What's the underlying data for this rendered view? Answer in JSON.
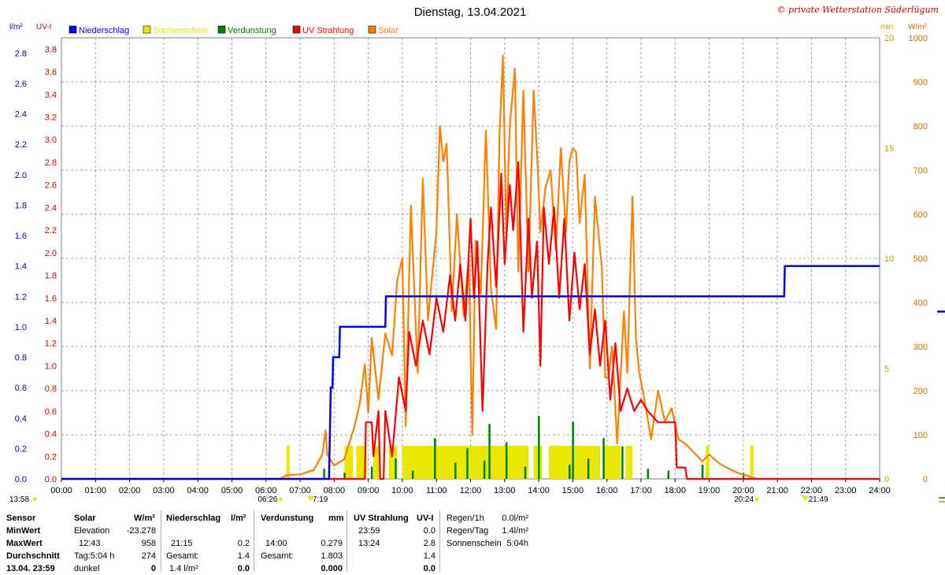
{
  "chart_data": {
    "type": "line",
    "title": "Dienstag, 13.04.2021",
    "copyright": "© private Wetterstation Süderlügum",
    "left_axis_units": [
      "l/m²",
      "UV-I"
    ],
    "right_axis_units": [
      "min",
      "W/m²"
    ],
    "legend": [
      {
        "name": "Niederschlag",
        "color": "#0000ff"
      },
      {
        "name": "Sonnenschein",
        "color": "#e8e800"
      },
      {
        "name": "Verdunstung",
        "color": "#008000"
      },
      {
        "name": "UV Strahlung",
        "color": "#ff0000"
      },
      {
        "name": "Solar",
        "color": "#ff8000"
      }
    ],
    "x_ticks": [
      "00:00",
      "01:00",
      "02:00",
      "03:00",
      "04:00",
      "05:00",
      "06:00",
      "07:00",
      "08:00",
      "09:00",
      "10:00",
      "11:00",
      "12:00",
      "13:00",
      "14:00",
      "15:00",
      "16:00",
      "17:00",
      "18:00",
      "19:00",
      "20:00",
      "21:00",
      "22:00",
      "23:00",
      "24:00"
    ],
    "y_ticks_rain": [
      "0.0",
      "0.2",
      "0.4",
      "0.6",
      "0.8",
      "1.0",
      "1.2",
      "1.4",
      "1.6",
      "1.8",
      "2.0",
      "2.2",
      "2.4",
      "2.6",
      "2.8"
    ],
    "y_ticks_uv": [
      "0.0",
      "0.2",
      "0.4",
      "0.6",
      "0.8",
      "1.0",
      "1.2",
      "1.4",
      "1.6",
      "1.8",
      "2.0",
      "2.2",
      "2.4",
      "2.6",
      "2.8",
      "3.0",
      "3.2",
      "3.4",
      "3.6",
      "3.8"
    ],
    "y_ticks_min": [
      "0",
      "5",
      "10",
      "15",
      "20"
    ],
    "y_ticks_solar": [
      "0",
      "100",
      "200",
      "300",
      "400",
      "500",
      "600",
      "700",
      "800",
      "900",
      "1000"
    ],
    "ranges": {
      "rain": [
        0,
        2.9
      ],
      "uv": [
        0,
        3.9
      ],
      "sun_min": [
        0,
        20
      ],
      "solar": [
        0,
        1000
      ],
      "hours": [
        0,
        24
      ]
    },
    "grid": true,
    "sun_events": {
      "dawn": {
        "time": 6.43,
        "label": "06:26"
      },
      "sunrise": {
        "time": 7.32,
        "label": "7:19"
      },
      "dusk": {
        "time": 20.4,
        "label": "20:24"
      },
      "sunset": {
        "time": 21.82,
        "label": "21:49"
      },
      "moon_label": "13:58"
    },
    "rain_series": [
      [
        0,
        0
      ],
      [
        7.85,
        0
      ],
      [
        7.9,
        0.6
      ],
      [
        7.95,
        0.6
      ],
      [
        7.97,
        0.8
      ],
      [
        8.15,
        0.8
      ],
      [
        8.17,
        1.0
      ],
      [
        9.5,
        1.0
      ],
      [
        9.52,
        1.2
      ],
      [
        21.2,
        1.2
      ],
      [
        21.22,
        1.4
      ],
      [
        24,
        1.4
      ]
    ],
    "rain_right_marker": 1.1,
    "solar_series": [
      [
        6.4,
        0
      ],
      [
        6.6,
        8
      ],
      [
        7.0,
        10
      ],
      [
        7.4,
        20
      ],
      [
        7.65,
        55
      ],
      [
        7.75,
        110
      ],
      [
        7.8,
        55
      ],
      [
        8.0,
        30
      ],
      [
        8.3,
        45
      ],
      [
        8.6,
        120
      ],
      [
        8.75,
        170
      ],
      [
        8.9,
        260
      ],
      [
        9.0,
        150
      ],
      [
        9.1,
        320
      ],
      [
        9.3,
        180
      ],
      [
        9.5,
        330
      ],
      [
        9.7,
        280
      ],
      [
        9.85,
        450
      ],
      [
        10.0,
        500
      ],
      [
        10.1,
        120
      ],
      [
        10.25,
        620
      ],
      [
        10.45,
        240
      ],
      [
        10.6,
        680
      ],
      [
        10.75,
        360
      ],
      [
        10.9,
        480
      ],
      [
        11.0,
        560
      ],
      [
        11.1,
        800
      ],
      [
        11.2,
        720
      ],
      [
        11.3,
        760
      ],
      [
        11.45,
        380
      ],
      [
        11.6,
        600
      ],
      [
        11.8,
        370
      ],
      [
        11.95,
        500
      ],
      [
        12.05,
        100
      ],
      [
        12.15,
        540
      ],
      [
        12.3,
        420
      ],
      [
        12.45,
        790
      ],
      [
        12.6,
        430
      ],
      [
        12.75,
        340
      ],
      [
        12.85,
        780
      ],
      [
        12.95,
        960
      ],
      [
        13.05,
        550
      ],
      [
        13.15,
        800
      ],
      [
        13.3,
        930
      ],
      [
        13.4,
        470
      ],
      [
        13.55,
        880
      ],
      [
        13.7,
        470
      ],
      [
        13.85,
        880
      ],
      [
        13.95,
        740
      ],
      [
        14.05,
        560
      ],
      [
        14.2,
        660
      ],
      [
        14.35,
        700
      ],
      [
        14.5,
        520
      ],
      [
        14.65,
        750
      ],
      [
        14.8,
        560
      ],
      [
        14.9,
        720
      ],
      [
        15.0,
        750
      ],
      [
        15.1,
        740
      ],
      [
        15.2,
        580
      ],
      [
        15.35,
        690
      ],
      [
        15.5,
        250
      ],
      [
        15.65,
        640
      ],
      [
        15.75,
        560
      ],
      [
        15.85,
        480
      ],
      [
        15.95,
        230
      ],
      [
        16.05,
        230
      ],
      [
        16.15,
        300
      ],
      [
        16.3,
        80
      ],
      [
        16.5,
        380
      ],
      [
        16.6,
        240
      ],
      [
        16.75,
        640
      ],
      [
        16.85,
        320
      ],
      [
        16.95,
        240
      ],
      [
        17.1,
        180
      ],
      [
        17.3,
        90
      ],
      [
        17.5,
        200
      ],
      [
        17.7,
        130
      ],
      [
        17.9,
        160
      ],
      [
        18.1,
        90
      ],
      [
        18.3,
        80
      ],
      [
        18.55,
        60
      ],
      [
        18.8,
        40
      ],
      [
        19.0,
        55
      ],
      [
        19.3,
        35
      ],
      [
        19.6,
        22
      ],
      [
        19.9,
        12
      ],
      [
        20.1,
        8
      ],
      [
        20.3,
        2
      ],
      [
        20.42,
        0
      ]
    ],
    "uv_series": [
      [
        0,
        0
      ],
      [
        8.9,
        0
      ],
      [
        8.93,
        0.5
      ],
      [
        9.1,
        0.5
      ],
      [
        9.15,
        0.2
      ],
      [
        9.3,
        0.6
      ],
      [
        9.35,
        0.0
      ],
      [
        9.45,
        0.0
      ],
      [
        9.5,
        0.6
      ],
      [
        9.7,
        0.2
      ],
      [
        9.9,
        0.9
      ],
      [
        10.1,
        0.6
      ],
      [
        10.2,
        1.3
      ],
      [
        10.4,
        1.0
      ],
      [
        10.6,
        1.4
      ],
      [
        10.8,
        1.1
      ],
      [
        11.0,
        1.6
      ],
      [
        11.2,
        1.3
      ],
      [
        11.4,
        1.8
      ],
      [
        11.55,
        1.4
      ],
      [
        11.7,
        1.9
      ],
      [
        11.85,
        1.4
      ],
      [
        12.0,
        2.3
      ],
      [
        12.1,
        1.6
      ],
      [
        12.2,
        2.1
      ],
      [
        12.35,
        0.6
      ],
      [
        12.5,
        1.9
      ],
      [
        12.6,
        2.4
      ],
      [
        12.75,
        1.7
      ],
      [
        12.9,
        2.7
      ],
      [
        13.0,
        1.9
      ],
      [
        13.15,
        2.6
      ],
      [
        13.25,
        2.2
      ],
      [
        13.4,
        2.8
      ],
      [
        13.55,
        1.3
      ],
      [
        13.7,
        2.3
      ],
      [
        13.8,
        1.6
      ],
      [
        13.95,
        2.1
      ],
      [
        14.05,
        1.0
      ],
      [
        14.15,
        2.4
      ],
      [
        14.3,
        1.9
      ],
      [
        14.45,
        2.4
      ],
      [
        14.6,
        1.6
      ],
      [
        14.75,
        2.3
      ],
      [
        14.9,
        1.4
      ],
      [
        15.05,
        2.0
      ],
      [
        15.2,
        1.5
      ],
      [
        15.35,
        1.9
      ],
      [
        15.5,
        1.1
      ],
      [
        15.65,
        1.5
      ],
      [
        15.8,
        1.0
      ],
      [
        15.95,
        1.4
      ],
      [
        16.1,
        0.7
      ],
      [
        16.25,
        1.2
      ],
      [
        16.4,
        0.6
      ],
      [
        16.6,
        0.8
      ],
      [
        16.8,
        0.6
      ],
      [
        17.0,
        0.7
      ],
      [
        17.2,
        0.6
      ],
      [
        17.5,
        0.5
      ],
      [
        18.0,
        0.5
      ],
      [
        18.05,
        0.1
      ],
      [
        18.3,
        0.1
      ],
      [
        18.35,
        0.0
      ],
      [
        24,
        0
      ]
    ],
    "sunshine_bars": [
      [
        6.6,
        6.7
      ],
      [
        8.3,
        8.55
      ],
      [
        8.65,
        8.95
      ],
      [
        9.15,
        9.35
      ],
      [
        9.6,
        9.85
      ],
      [
        10.0,
        13.7
      ],
      [
        13.85,
        14.1
      ],
      [
        14.3,
        15.8
      ],
      [
        15.9,
        16.4
      ],
      [
        16.55,
        16.75
      ],
      [
        18.9,
        19.0
      ],
      [
        20.2,
        20.3
      ]
    ],
    "evaporation_ticks": [
      [
        7.7,
        0.5
      ],
      [
        8.3,
        0.3
      ],
      [
        9.1,
        0.6
      ],
      [
        9.8,
        1.0
      ],
      [
        10.3,
        0.4
      ],
      [
        10.95,
        2.0
      ],
      [
        11.55,
        0.8
      ],
      [
        11.9,
        1.5
      ],
      [
        12.4,
        0.9
      ],
      [
        12.55,
        2.7
      ],
      [
        13.05,
        1.8
      ],
      [
        13.6,
        0.6
      ],
      [
        14.0,
        3.1
      ],
      [
        14.9,
        0.7
      ],
      [
        15.0,
        2.8
      ],
      [
        15.45,
        1.0
      ],
      [
        15.9,
        2.0
      ],
      [
        16.45,
        1.6
      ],
      [
        17.2,
        0.5
      ],
      [
        17.8,
        0.4
      ],
      [
        18.8,
        0.7
      ],
      [
        20.0,
        0.3
      ]
    ],
    "unit_lm2": "l/m²",
    "unit_uvi": "UV-I",
    "unit_min": "min",
    "unit_wm2": "W/m²"
  },
  "table": {
    "sensor": {
      "header": "Sensor",
      "rows": [
        "MinWert",
        "MaxWert",
        "Durchschnitt",
        "13.04. 23:59"
      ]
    },
    "solar": {
      "header": "Solar",
      "unit": "W/m²",
      "rows": [
        {
          "label": "Elevation",
          "value": "-23.278"
        },
        {
          "label": "12:43",
          "value": "958"
        },
        {
          "label": "Tag:5:04 h",
          "value": "274"
        },
        {
          "label": "dunkel",
          "value": "0"
        }
      ]
    },
    "rain": {
      "header": "Niederschlag",
      "unit": "l/m²",
      "rows": [
        {
          "label": "",
          "value": ""
        },
        {
          "label": "21:15",
          "value": "0.2"
        },
        {
          "label": "Gesamt:",
          "value": "1.4"
        },
        {
          "label": "1.4 l/m²",
          "value": "0.0"
        }
      ]
    },
    "evap": {
      "header": "Verdunstung",
      "unit": "mm",
      "rows": [
        {
          "label": "",
          "value": ""
        },
        {
          "label": "14:00",
          "value": "0.279"
        },
        {
          "label": "Gesamt:",
          "value": "1.803"
        },
        {
          "label": "",
          "value": "0.000"
        }
      ]
    },
    "uv": {
      "header": "UV Strahlung",
      "unit": "UV-I",
      "rows": [
        {
          "label": "23:59",
          "value": "0.0"
        },
        {
          "label": "13:24",
          "value": "2.8"
        },
        {
          "label": "",
          "value": "1.4"
        },
        {
          "label": "",
          "value": "0.0"
        }
      ]
    },
    "summary": {
      "rows": [
        {
          "label": "Regen/1h",
          "value": "0.0l/m²"
        },
        {
          "label": "Regen/Tag",
          "value": "1.4l/m²"
        },
        {
          "label": "Sonnenschein",
          "value": "5:04h"
        }
      ]
    }
  },
  "colors": {
    "rain": "#0000ff",
    "sunshine": "#e8e800",
    "evap": "#008000",
    "uv": "#ff0000",
    "solar": "#ff8000",
    "rain_axis": "#0000c0",
    "uv_axis": "#d00000",
    "min_axis": "#c8a000",
    "solar_axis": "#c87000",
    "copyright": "#cc0000",
    "grid": "#a0a0a0"
  }
}
